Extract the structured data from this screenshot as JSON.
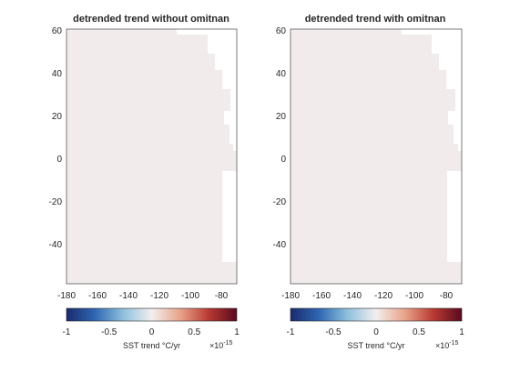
{
  "chart_data": [
    {
      "type": "heatmap",
      "title": "detrended trend without omitnan",
      "xlim": [
        -180,
        -70
      ],
      "ylim": [
        -60,
        60
      ],
      "xticks": [
        -180,
        -160,
        -140,
        -120,
        -100,
        -80
      ],
      "yticks": [
        -40,
        -20,
        0,
        20,
        40,
        60
      ],
      "grid": false,
      "map_values_range": [
        -0.05,
        0.05
      ],
      "color_ocean": "#f1eceb",
      "color_land": "#ffffff"
    },
    {
      "type": "heatmap",
      "title": "detrended trend with omitnan",
      "xlim": [
        -180,
        -70
      ],
      "ylim": [
        -60,
        60
      ],
      "xticks": [
        -180,
        -160,
        -140,
        -120,
        -100,
        -80
      ],
      "yticks": [
        -40,
        -20,
        0,
        20,
        40,
        60
      ],
      "grid": false,
      "map_values_range": [
        -0.05,
        0.05
      ],
      "color_ocean": "#f1eceb",
      "color_land": "#ffffff"
    }
  ],
  "colorbar": {
    "label": "SST trend °C/yr",
    "ticks": [
      "-1",
      "-0.5",
      "0",
      "0.5",
      "1"
    ],
    "exponent_base": "×10",
    "exponent_power": "-15",
    "colormap": [
      "#1a2a6c",
      "#2f67b1",
      "#8fc0dd",
      "#f2efee",
      "#e8a48a",
      "#b83a32",
      "#5a0a1e"
    ]
  }
}
